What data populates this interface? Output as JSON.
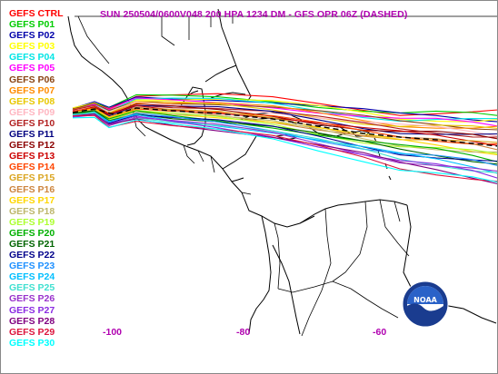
{
  "title": "SUN 250504/0600V048  200 HPA 1234 DM - GFS OPR 06Z (DASHED)",
  "title_color": "#b000b0",
  "lon_labels": [
    "-100",
    "-80",
    "-60"
  ],
  "lon_label_color": "#b000b0",
  "logo": {
    "text": "NOAA",
    "icon": "noaa-logo-icon"
  },
  "legend": [
    {
      "label": "GEFS CTRL",
      "color": "#ff0000"
    },
    {
      "label": "GEFS P01",
      "color": "#00cc00"
    },
    {
      "label": "GEFS P02",
      "color": "#0000aa"
    },
    {
      "label": "GEFS P03",
      "color": "#ffff00"
    },
    {
      "label": "GEFS P04",
      "color": "#00e5e5"
    },
    {
      "label": "GEFS P05",
      "color": "#ff00ff"
    },
    {
      "label": "GEFS P06",
      "color": "#8b4513"
    },
    {
      "label": "GEFS P07",
      "color": "#ff8c00"
    },
    {
      "label": "GEFS P08",
      "color": "#e8c800"
    },
    {
      "label": "GEFS P09",
      "color": "#ffb6c1"
    },
    {
      "label": "GEFS P10",
      "color": "#b22222"
    },
    {
      "label": "GEFS P11",
      "color": "#000080"
    },
    {
      "label": "GEFS P12",
      "color": "#8b0000"
    },
    {
      "label": "GEFS P13",
      "color": "#cc0000"
    },
    {
      "label": "GEFS P14",
      "color": "#ff4500"
    },
    {
      "label": "GEFS P15",
      "color": "#daa520"
    },
    {
      "label": "GEFS P16",
      "color": "#cd853f"
    },
    {
      "label": "GEFS P17",
      "color": "#ffd700"
    },
    {
      "label": "GEFS P18",
      "color": "#bdb76b"
    },
    {
      "label": "GEFS P19",
      "color": "#adff2f"
    },
    {
      "label": "GEFS P20",
      "color": "#00b000"
    },
    {
      "label": "GEFS P21",
      "color": "#006400"
    },
    {
      "label": "GEFS P22",
      "color": "#00008b"
    },
    {
      "label": "GEFS P23",
      "color": "#1e90ff"
    },
    {
      "label": "GEFS P24",
      "color": "#00bfff"
    },
    {
      "label": "GEFS P25",
      "color": "#40e0d0"
    },
    {
      "label": "GEFS P26",
      "color": "#9932cc"
    },
    {
      "label": "GEFS P27",
      "color": "#8a2be2"
    },
    {
      "label": "GEFS P28",
      "color": "#800080"
    },
    {
      "label": "GEFS P29",
      "color": "#dc143c"
    },
    {
      "label": "GEFS P30",
      "color": "#00ffff"
    }
  ]
}
